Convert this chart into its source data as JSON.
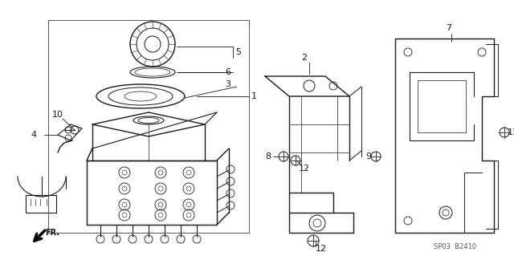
{
  "bg_color": "#ffffff",
  "diagram_code": "SP03  B2410",
  "line_color": "#1a1a1a",
  "text_color": "#1a1a1a",
  "figsize": [
    6.4,
    3.19
  ],
  "dpi": 100
}
